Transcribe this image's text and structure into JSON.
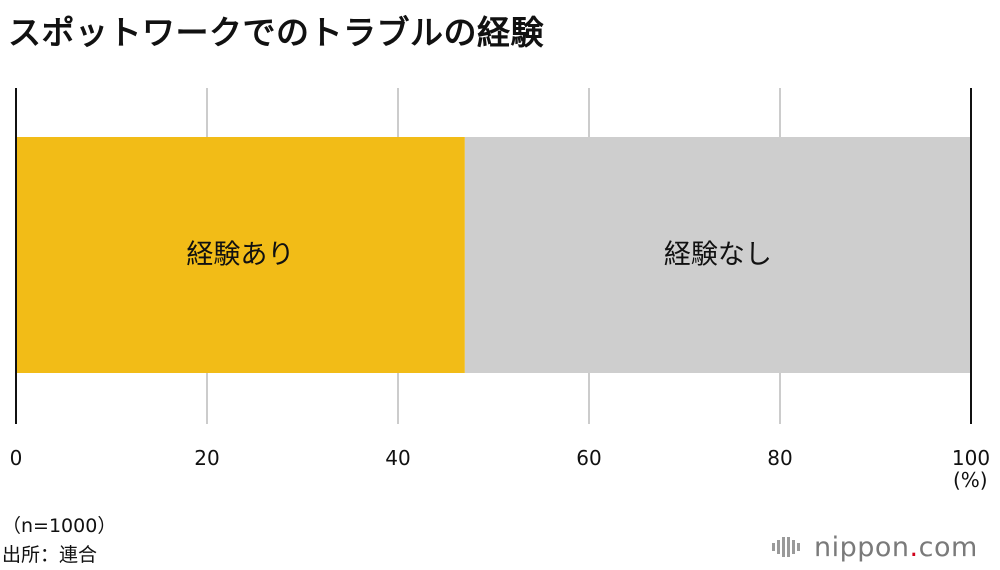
{
  "title": "スポットワークでのトラブルの経験",
  "notes": {
    "sample": "（n=1000）",
    "source": "出所：連合"
  },
  "logo": {
    "name": "nippon",
    "dot": ".",
    "tld": "com"
  },
  "colors": {
    "experienced": "#f2bc17",
    "not_experienced": "#cecece",
    "grid": "#cccccc",
    "axis": "#111111"
  },
  "chart_data": {
    "type": "bar",
    "orientation": "horizontal-stacked",
    "title": "スポットワークでのトラブルの経験",
    "unit": "(%)",
    "xlim": [
      0,
      100
    ],
    "ticks": [
      0,
      20,
      40,
      60,
      80,
      100
    ],
    "grid": true,
    "series": [
      {
        "name": "経験あり",
        "value": 47,
        "color": "#f2bc17"
      },
      {
        "name": "経験なし",
        "value": 53,
        "color": "#cecece"
      }
    ]
  }
}
